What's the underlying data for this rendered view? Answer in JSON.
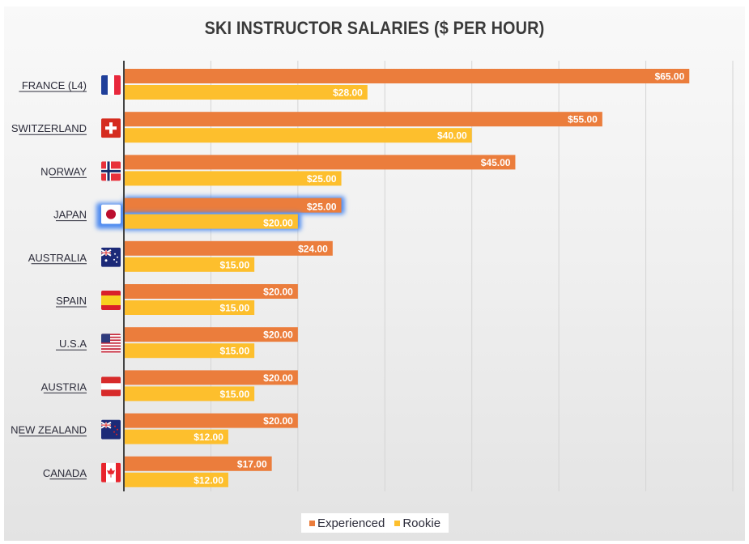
{
  "chart_data": {
    "type": "bar",
    "orientation": "horizontal",
    "title": "SKI INSTRUCTOR SALARIES ($ PER HOUR)",
    "categories": [
      "FRANCE (L4)",
      "SWITZERLAND",
      "NORWAY",
      "JAPAN",
      "AUSTRALIA",
      "SPAIN",
      "U.S.A",
      "AUSTRIA",
      "NEW ZEALAND",
      "CANADA"
    ],
    "flags": [
      "france-flag-icon",
      "switzerland-flag-icon",
      "norway-flag-icon",
      "japan-flag-icon",
      "australia-flag-icon",
      "spain-flag-icon",
      "usa-flag-icon",
      "austria-flag-icon",
      "new-zealand-flag-icon",
      "canada-flag-icon"
    ],
    "series": [
      {
        "name": "Experienced",
        "color": "#eb7d3c",
        "values": [
          65,
          55,
          45,
          25,
          24,
          20,
          20,
          20,
          20,
          17
        ],
        "labels": [
          "$65.00",
          "$55.00",
          "$45.00",
          "$25.00",
          "$24.00",
          "$20.00",
          "$20.00",
          "$20.00",
          "$20.00",
          "$17.00"
        ]
      },
      {
        "name": "Rookie",
        "color": "#fdbf2d",
        "values": [
          28,
          40,
          25,
          20,
          15,
          15,
          15,
          15,
          12,
          12
        ],
        "labels": [
          "$28.00",
          "$40.00",
          "$25.00",
          "$20.00",
          "$15.00",
          "$15.00",
          "$15.00",
          "$15.00",
          "$12.00",
          "$12.00"
        ]
      }
    ],
    "highlighted_category": "JAPAN",
    "highlight_color": "#4d8af0",
    "xlim": [
      0,
      70
    ],
    "grid": true,
    "legend_placement": "bottom"
  }
}
